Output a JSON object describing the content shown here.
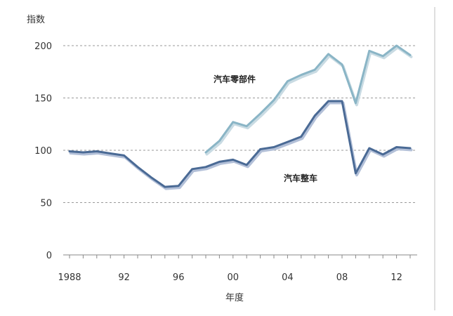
{
  "chart_data": {
    "type": "line",
    "ylabel": "指数",
    "xlabel": "年度",
    "ylim": [
      0,
      210
    ],
    "yticks": [
      0,
      50,
      100,
      150,
      200
    ],
    "xlim": [
      1988,
      2013.5
    ],
    "xticks": [
      {
        "value": 1988,
        "label": "1988"
      },
      {
        "value": 1992,
        "label": "92"
      },
      {
        "value": 1996,
        "label": "96"
      },
      {
        "value": 2000,
        "label": "00"
      },
      {
        "value": 2004,
        "label": "04"
      },
      {
        "value": 2008,
        "label": "08"
      },
      {
        "value": 2012,
        "label": "12"
      }
    ],
    "grid": true,
    "series": [
      {
        "name": "汽车零部件",
        "color": "#8ab5c6",
        "shadow": "#c9dbe3",
        "x": [
          1998,
          1999,
          2000,
          2001,
          2002,
          2003,
          2004,
          2005,
          2006,
          2007,
          2008,
          2009,
          2010,
          2011,
          2012,
          2013
        ],
        "values": [
          98,
          109,
          127,
          123,
          135,
          148,
          166,
          172,
          177,
          192,
          182,
          145,
          195,
          190,
          200,
          191
        ]
      },
      {
        "name": "汽车整车",
        "color": "#4a6a95",
        "shadow": "#b3c0d8",
        "x": [
          1988,
          1989,
          1990,
          1991,
          1992,
          1993,
          1994,
          1995,
          1996,
          1997,
          1998,
          1999,
          2000,
          2001,
          2002,
          2003,
          2004,
          2005,
          2006,
          2007,
          2008,
          2009,
          2010,
          2011,
          2012,
          2013
        ],
        "values": [
          99,
          98,
          99,
          97,
          95,
          84,
          74,
          65,
          66,
          82,
          84,
          89,
          91,
          86,
          101,
          103,
          108,
          113,
          133,
          147,
          147,
          78,
          102,
          96,
          103,
          102
        ]
      }
    ]
  }
}
